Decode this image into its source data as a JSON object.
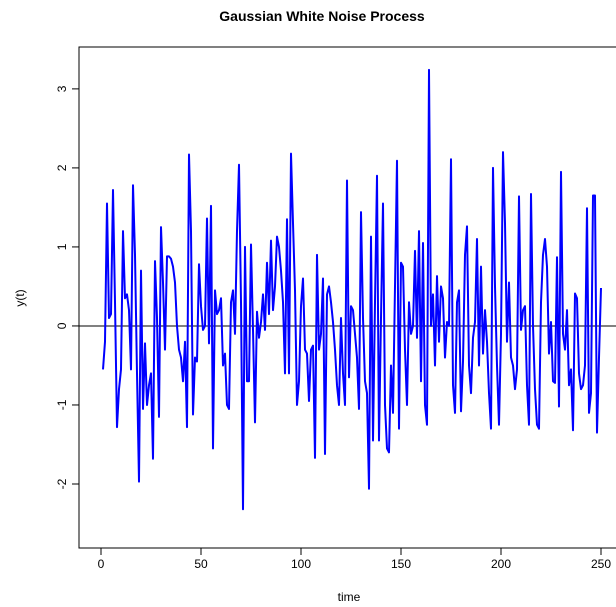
{
  "chart_data": {
    "type": "line",
    "title": "Gaussian White Noise Process",
    "x_label": "time",
    "y_label": "y(t)",
    "x": [
      1,
      2,
      3,
      4,
      5,
      6,
      7,
      8,
      9,
      10,
      11,
      12,
      13,
      14,
      15,
      16,
      17,
      18,
      19,
      20,
      21,
      22,
      23,
      24,
      25,
      26,
      27,
      28,
      29,
      30,
      31,
      32,
      33,
      34,
      35,
      36,
      37,
      38,
      39,
      40,
      41,
      42,
      43,
      44,
      45,
      46,
      47,
      48,
      49,
      50,
      51,
      52,
      53,
      54,
      55,
      56,
      57,
      58,
      59,
      60,
      61,
      62,
      63,
      64,
      65,
      66,
      67,
      68,
      69,
      70,
      71,
      72,
      73,
      74,
      75,
      76,
      77,
      78,
      79,
      80,
      81,
      82,
      83,
      84,
      85,
      86,
      87,
      88,
      89,
      90,
      91,
      92,
      93,
      94,
      95,
      96,
      97,
      98,
      99,
      100,
      101,
      102,
      103,
      104,
      105,
      106,
      107,
      108,
      109,
      110,
      111,
      112,
      113,
      114,
      115,
      116,
      117,
      118,
      119,
      120,
      121,
      122,
      123,
      124,
      125,
      126,
      127,
      128,
      129,
      130,
      131,
      132,
      133,
      134,
      135,
      136,
      137,
      138,
      139,
      140,
      141,
      142,
      143,
      144,
      145,
      146,
      147,
      148,
      149,
      150,
      151,
      152,
      153,
      154,
      155,
      156,
      157,
      158,
      159,
      160,
      161,
      162,
      163,
      164,
      165,
      166,
      167,
      168,
      169,
      170,
      171,
      172,
      173,
      174,
      175,
      176,
      177,
      178,
      179,
      180,
      181,
      182,
      183,
      184,
      185,
      186,
      187,
      188,
      189,
      190,
      191,
      192,
      193,
      194,
      195,
      196,
      197,
      198,
      199,
      200,
      201,
      202,
      203,
      204,
      205,
      206,
      207,
      208,
      209,
      210,
      211,
      212,
      213,
      214,
      215,
      216,
      217,
      218,
      219,
      220,
      221,
      222,
      223,
      224,
      225,
      226,
      227,
      228,
      229,
      230,
      231,
      232,
      233,
      234,
      235,
      236,
      237,
      238,
      239,
      240,
      241,
      242,
      243,
      244,
      245,
      246,
      247,
      248,
      249,
      250
    ],
    "series": [
      {
        "color": "#0000ff",
        "values": [
          -0.55,
          -0.2,
          1.55,
          0.1,
          0.15,
          1.72,
          0.3,
          -1.28,
          -0.8,
          -0.55,
          1.2,
          0.35,
          0.4,
          0.2,
          -0.55,
          1.78,
          0.9,
          -0.6,
          -1.97,
          0.7,
          -1.05,
          -0.22,
          -1.0,
          -0.75,
          -0.6,
          -1.68,
          0.82,
          0.1,
          -1.15,
          1.25,
          0.55,
          -0.3,
          0.88,
          0.88,
          0.85,
          0.75,
          0.55,
          0.0,
          -0.3,
          -0.4,
          -0.7,
          -0.2,
          -1.28,
          2.17,
          1.2,
          -1.12,
          -0.4,
          -0.45,
          0.78,
          0.25,
          -0.05,
          0.0,
          1.36,
          -0.22,
          1.52,
          -1.55,
          0.45,
          0.15,
          0.2,
          0.35,
          -0.5,
          -0.35,
          -1.0,
          -1.05,
          0.3,
          0.45,
          -0.1,
          1.2,
          2.04,
          0.3,
          -2.32,
          1.0,
          -0.7,
          -0.7,
          1.03,
          -0.05,
          -1.22,
          0.18,
          -0.15,
          0.05,
          0.4,
          -0.05,
          0.8,
          0.15,
          1.08,
          0.2,
          0.5,
          1.13,
          1.0,
          0.7,
          0.3,
          -0.6,
          1.35,
          -0.6,
          2.18,
          1.3,
          0.45,
          -1.0,
          -0.7,
          0.25,
          0.6,
          -0.3,
          -0.35,
          -0.95,
          -0.3,
          -0.25,
          -1.67,
          0.9,
          -0.3,
          -0.1,
          0.6,
          -1.62,
          0.4,
          0.5,
          0.3,
          0.05,
          -0.3,
          -0.75,
          -1.0,
          0.1,
          -0.6,
          -1.0,
          1.84,
          -0.65,
          0.25,
          0.2,
          -0.1,
          -0.4,
          -1.05,
          1.44,
          0.1,
          -0.7,
          -0.85,
          -2.06,
          1.13,
          -1.45,
          0.3,
          1.9,
          -1.45,
          0.1,
          1.55,
          -1.0,
          -1.55,
          -1.6,
          -0.5,
          -1.1,
          0.5,
          2.09,
          -1.3,
          0.8,
          0.75,
          -0.3,
          -1.0,
          0.3,
          -0.1,
          0.0,
          0.95,
          -0.15,
          1.2,
          -0.7,
          1.05,
          -1.0,
          -1.25,
          3.24,
          0.0,
          0.4,
          -0.5,
          0.63,
          -0.2,
          0.5,
          0.35,
          -0.4,
          0.05,
          0.0,
          2.11,
          -0.75,
          -1.1,
          0.3,
          0.45,
          -1.08,
          -0.45,
          0.9,
          1.26,
          -0.5,
          -0.85,
          -0.15,
          0.05,
          1.1,
          -0.5,
          0.75,
          -0.35,
          0.2,
          -0.2,
          -0.85,
          -1.3,
          2.0,
          0.5,
          -0.5,
          -1.25,
          -0.1,
          2.2,
          1.3,
          -0.2,
          0.55,
          -0.4,
          -0.5,
          -0.8,
          -0.55,
          1.64,
          -0.05,
          0.2,
          0.25,
          -0.75,
          -1.25,
          1.67,
          0.0,
          -0.8,
          -1.25,
          -1.3,
          0.3,
          0.9,
          1.1,
          0.75,
          -0.35,
          0.05,
          -0.7,
          -0.72,
          0.87,
          -1.02,
          1.95,
          -0.1,
          -0.3,
          0.2,
          -0.75,
          -0.55,
          -1.32,
          0.41,
          0.35,
          -0.6,
          -0.8,
          -0.75,
          -0.5,
          1.49,
          -1.1,
          -0.85,
          1.65,
          1.65,
          -1.35,
          -0.4,
          0.48
        ]
      }
    ],
    "xlim": [
      -11,
      260
    ],
    "ylim": [
      -2.81,
      3.53
    ],
    "xticks": [
      0,
      50,
      100,
      150,
      200,
      250
    ],
    "yticks": [
      -2,
      -1,
      0,
      1,
      2,
      3
    ],
    "reference_line": 0
  }
}
